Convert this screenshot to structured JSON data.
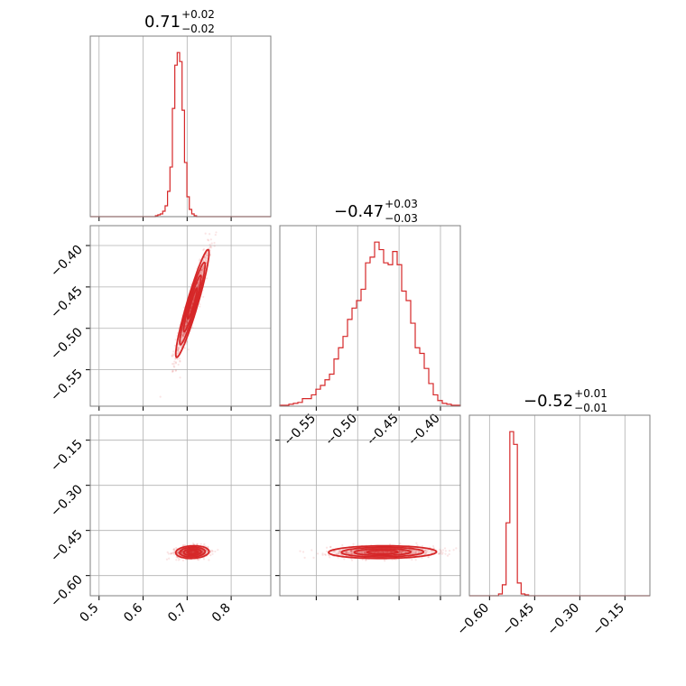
{
  "colors": {
    "accent": "#d62728",
    "frame": "#7f7f7f",
    "grid": "#b0b0b0"
  },
  "chart_data": [
    {
      "panel": "hist-p0",
      "type": "bar",
      "title": {
        "value": "0.71",
        "plus": "+0.02",
        "minus": "−0.02"
      },
      "xlim": [
        0.48,
        0.89
      ],
      "xticks": [
        0.5,
        0.6,
        0.7,
        0.8
      ],
      "xtick_labels": [
        "0.5",
        "0.6",
        "0.7",
        "0.8"
      ],
      "show_xtick_labels": false,
      "bins": {
        "start": 0.628,
        "width": 0.0055
      },
      "values": [
        1,
        2,
        3,
        6,
        12,
        28,
        55,
        120,
        168,
        182,
        172,
        118,
        60,
        22,
        8,
        3,
        1
      ]
    },
    {
      "panel": "hist-p1",
      "type": "bar",
      "title": {
        "value": "−0.47",
        "plus": "+0.03",
        "minus": "−0.03"
      },
      "xlim": [
        -0.594,
        -0.376
      ],
      "xticks": [
        -0.55,
        -0.5,
        -0.45,
        -0.4
      ],
      "xtick_labels": [
        "−0.55",
        "−0.50",
        "−0.45",
        "−0.40"
      ],
      "show_xtick_labels": true,
      "bins": {
        "start": -0.594,
        "width": 0.00545
      },
      "values": [
        1,
        1,
        2,
        3,
        4,
        8,
        8,
        12,
        18,
        22,
        28,
        34,
        50,
        62,
        74,
        92,
        104,
        112,
        124,
        152,
        158,
        174,
        166,
        152,
        150,
        164,
        150,
        122,
        112,
        88,
        62,
        56,
        40,
        24,
        12,
        6,
        3,
        2,
        1,
        1
      ]
    },
    {
      "panel": "hist-p2",
      "type": "bar",
      "title": {
        "value": "−0.52",
        "plus": "+0.01",
        "minus": "−0.01"
      },
      "xlim": [
        -0.667,
        -0.067
      ],
      "xticks": [
        -0.6,
        -0.45,
        -0.3,
        -0.15
      ],
      "xtick_labels": [
        "−0.60",
        "−0.45",
        "−0.30",
        "−0.15"
      ],
      "show_xtick_labels": true,
      "bins": {
        "start": -0.57,
        "width": 0.0125
      },
      "values": [
        2,
        12,
        80,
        180,
        166,
        14,
        2,
        1
      ]
    },
    {
      "panel": "joint-p0-p1",
      "type": "scatter",
      "xlim": [
        0.48,
        0.89
      ],
      "ylim": [
        -0.594,
        -0.376
      ],
      "yticks": [
        -0.4,
        -0.45,
        -0.5,
        -0.55
      ],
      "ytick_labels": [
        "−0.40",
        "−0.45",
        "−0.50",
        "−0.55"
      ],
      "density": {
        "mean": [
          0.712,
          -0.47
        ],
        "std": [
          0.018,
          0.031
        ],
        "corr": 0.94,
        "contour_sigmas": [
          0.6,
          1.1,
          1.6,
          2.1
        ]
      }
    },
    {
      "panel": "joint-p0-p2",
      "type": "scatter",
      "xlim": [
        0.48,
        0.89
      ],
      "ylim": [
        -0.667,
        -0.067
      ],
      "yticks": [
        -0.15,
        -0.3,
        -0.45,
        -0.6
      ],
      "ytick_labels": [
        "−0.15",
        "−0.30",
        "−0.45",
        "−0.60"
      ],
      "density": {
        "mean": [
          0.712,
          -0.522
        ],
        "std": [
          0.018,
          0.01
        ],
        "corr": 0.1,
        "contour_sigmas": [
          0.6,
          1.1,
          1.6,
          2.1
        ]
      }
    },
    {
      "panel": "joint-p1-p2",
      "type": "scatter",
      "xlim": [
        -0.594,
        -0.376
      ],
      "ylim": [
        -0.667,
        -0.067
      ],
      "density": {
        "mean": [
          -0.47,
          -0.522
        ],
        "std": [
          0.031,
          0.01
        ],
        "corr": 0.05,
        "contour_sigmas": [
          0.6,
          1.1,
          1.6,
          2.1
        ]
      }
    }
  ]
}
